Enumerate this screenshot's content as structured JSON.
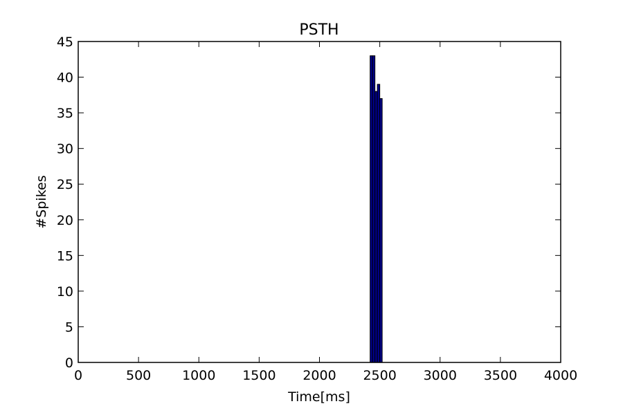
{
  "chart_data": {
    "type": "bar",
    "title": "PSTH",
    "xlabel": "Time[ms]",
    "ylabel": "#Spikes",
    "xlim": [
      0,
      4000
    ],
    "ylim": [
      0,
      45
    ],
    "xticks": [
      0,
      500,
      1000,
      1500,
      2000,
      2500,
      3000,
      3500,
      4000
    ],
    "yticks": [
      0,
      5,
      10,
      15,
      20,
      25,
      30,
      35,
      40,
      45
    ],
    "grid": false,
    "bar_color": "#00008b",
    "bar_edge_color": "#000000",
    "bins": [
      {
        "start": 2420,
        "end": 2440,
        "value": 43
      },
      {
        "start": 2440,
        "end": 2460,
        "value": 43
      },
      {
        "start": 2460,
        "end": 2480,
        "value": 38
      },
      {
        "start": 2480,
        "end": 2500,
        "value": 39
      },
      {
        "start": 2500,
        "end": 2520,
        "value": 37
      }
    ]
  }
}
